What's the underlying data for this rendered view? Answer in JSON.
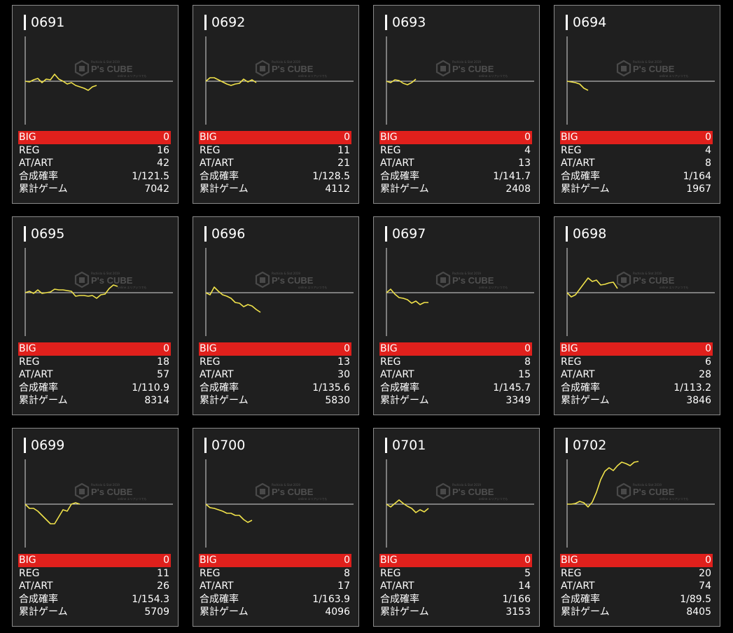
{
  "labels": {
    "big": "BIG",
    "reg": "REG",
    "at": "AT/ART",
    "prob": "合成確率",
    "games": "累計ゲーム"
  },
  "watermark": {
    "icon": "cube-logo-icon",
    "text": "P's CUBE",
    "small_top": "Pachislo & Slot 2019",
    "small_bottom": "online エリアいつでも"
  },
  "colors": {
    "card_bg": "#1f1f1f",
    "card_border": "#8a8a8a",
    "big_row": "#e0201c",
    "line": "#f0e24a",
    "axis": "#d8d8d8"
  },
  "machines": [
    {
      "id": "0691",
      "big": "0",
      "reg": "16",
      "at": "42",
      "prob": "1/121.5",
      "games": "7042",
      "graph": [
        0,
        -1,
        2,
        4,
        -2,
        3,
        2,
        10,
        3,
        0,
        -4,
        -2,
        -6,
        -8,
        -10,
        -13,
        -8,
        -6
      ]
    },
    {
      "id": "0692",
      "big": "0",
      "reg": "11",
      "at": "21",
      "prob": "1/128.5",
      "games": "4112",
      "graph": [
        0,
        5,
        5,
        2,
        -1,
        -4,
        -6,
        -4,
        -3,
        3,
        -1,
        2,
        -2
      ]
    },
    {
      "id": "0693",
      "big": "0",
      "reg": "4",
      "at": "13",
      "prob": "1/141.7",
      "games": "2408",
      "graph": [
        0,
        -2,
        2,
        1,
        -3,
        -5,
        -2,
        3
      ]
    },
    {
      "id": "0694",
      "big": "0",
      "reg": "4",
      "at": "8",
      "prob": "1/164",
      "games": "1967",
      "graph": [
        0,
        -1,
        -2,
        -4,
        -10,
        -13
      ]
    },
    {
      "id": "0695",
      "big": "0",
      "reg": "18",
      "at": "57",
      "prob": "1/110.9",
      "games": "8314",
      "graph": [
        0,
        2,
        -1,
        4,
        -1,
        0,
        1,
        5,
        4,
        4,
        3,
        2,
        -5,
        -4,
        -4,
        -5,
        -4,
        -8,
        -3,
        -2,
        6,
        11,
        9
      ]
    },
    {
      "id": "0696",
      "big": "0",
      "reg": "13",
      "at": "30",
      "prob": "1/135.6",
      "games": "5830",
      "graph": [
        0,
        -3,
        8,
        2,
        -3,
        -5,
        -8,
        -14,
        -15,
        -20,
        -17,
        -19,
        -24,
        -28
      ]
    },
    {
      "id": "0697",
      "big": "0",
      "reg": "8",
      "at": "15",
      "prob": "1/145.7",
      "games": "3349",
      "graph": [
        0,
        5,
        -2,
        -7,
        -8,
        -10,
        -15,
        -12,
        -17,
        -14,
        -14
      ]
    },
    {
      "id": "0698",
      "big": "0",
      "reg": "6",
      "at": "28",
      "prob": "1/113.2",
      "games": "3846",
      "graph": [
        0,
        -6,
        -3,
        5,
        13,
        21,
        16,
        18,
        11,
        12,
        14,
        15,
        6
      ]
    },
    {
      "id": "0699",
      "big": "0",
      "reg": "11",
      "at": "26",
      "prob": "1/154.3",
      "games": "5709",
      "graph": [
        0,
        -6,
        -6,
        -10,
        -16,
        -22,
        -28,
        -28,
        -18,
        -8,
        -10,
        0,
        2,
        0
      ]
    },
    {
      "id": "0700",
      "big": "0",
      "reg": "8",
      "at": "17",
      "prob": "1/163.9",
      "games": "4096",
      "graph": [
        0,
        -5,
        -6,
        -8,
        -10,
        -13,
        -13,
        -16,
        -16,
        -22,
        -26,
        -23
      ]
    },
    {
      "id": "0701",
      "big": "0",
      "reg": "5",
      "at": "14",
      "prob": "1/166",
      "games": "3153",
      "graph": [
        0,
        -4,
        1,
        6,
        1,
        -3,
        -6,
        -12,
        -8,
        -11,
        -6
      ]
    },
    {
      "id": "0702",
      "big": "0",
      "reg": "20",
      "at": "74",
      "prob": "1/89.5",
      "games": "8405",
      "graph": [
        0,
        0,
        1,
        4,
        2,
        -4,
        3,
        17,
        35,
        47,
        52,
        48,
        55,
        60,
        58,
        55,
        60,
        61
      ]
    }
  ]
}
